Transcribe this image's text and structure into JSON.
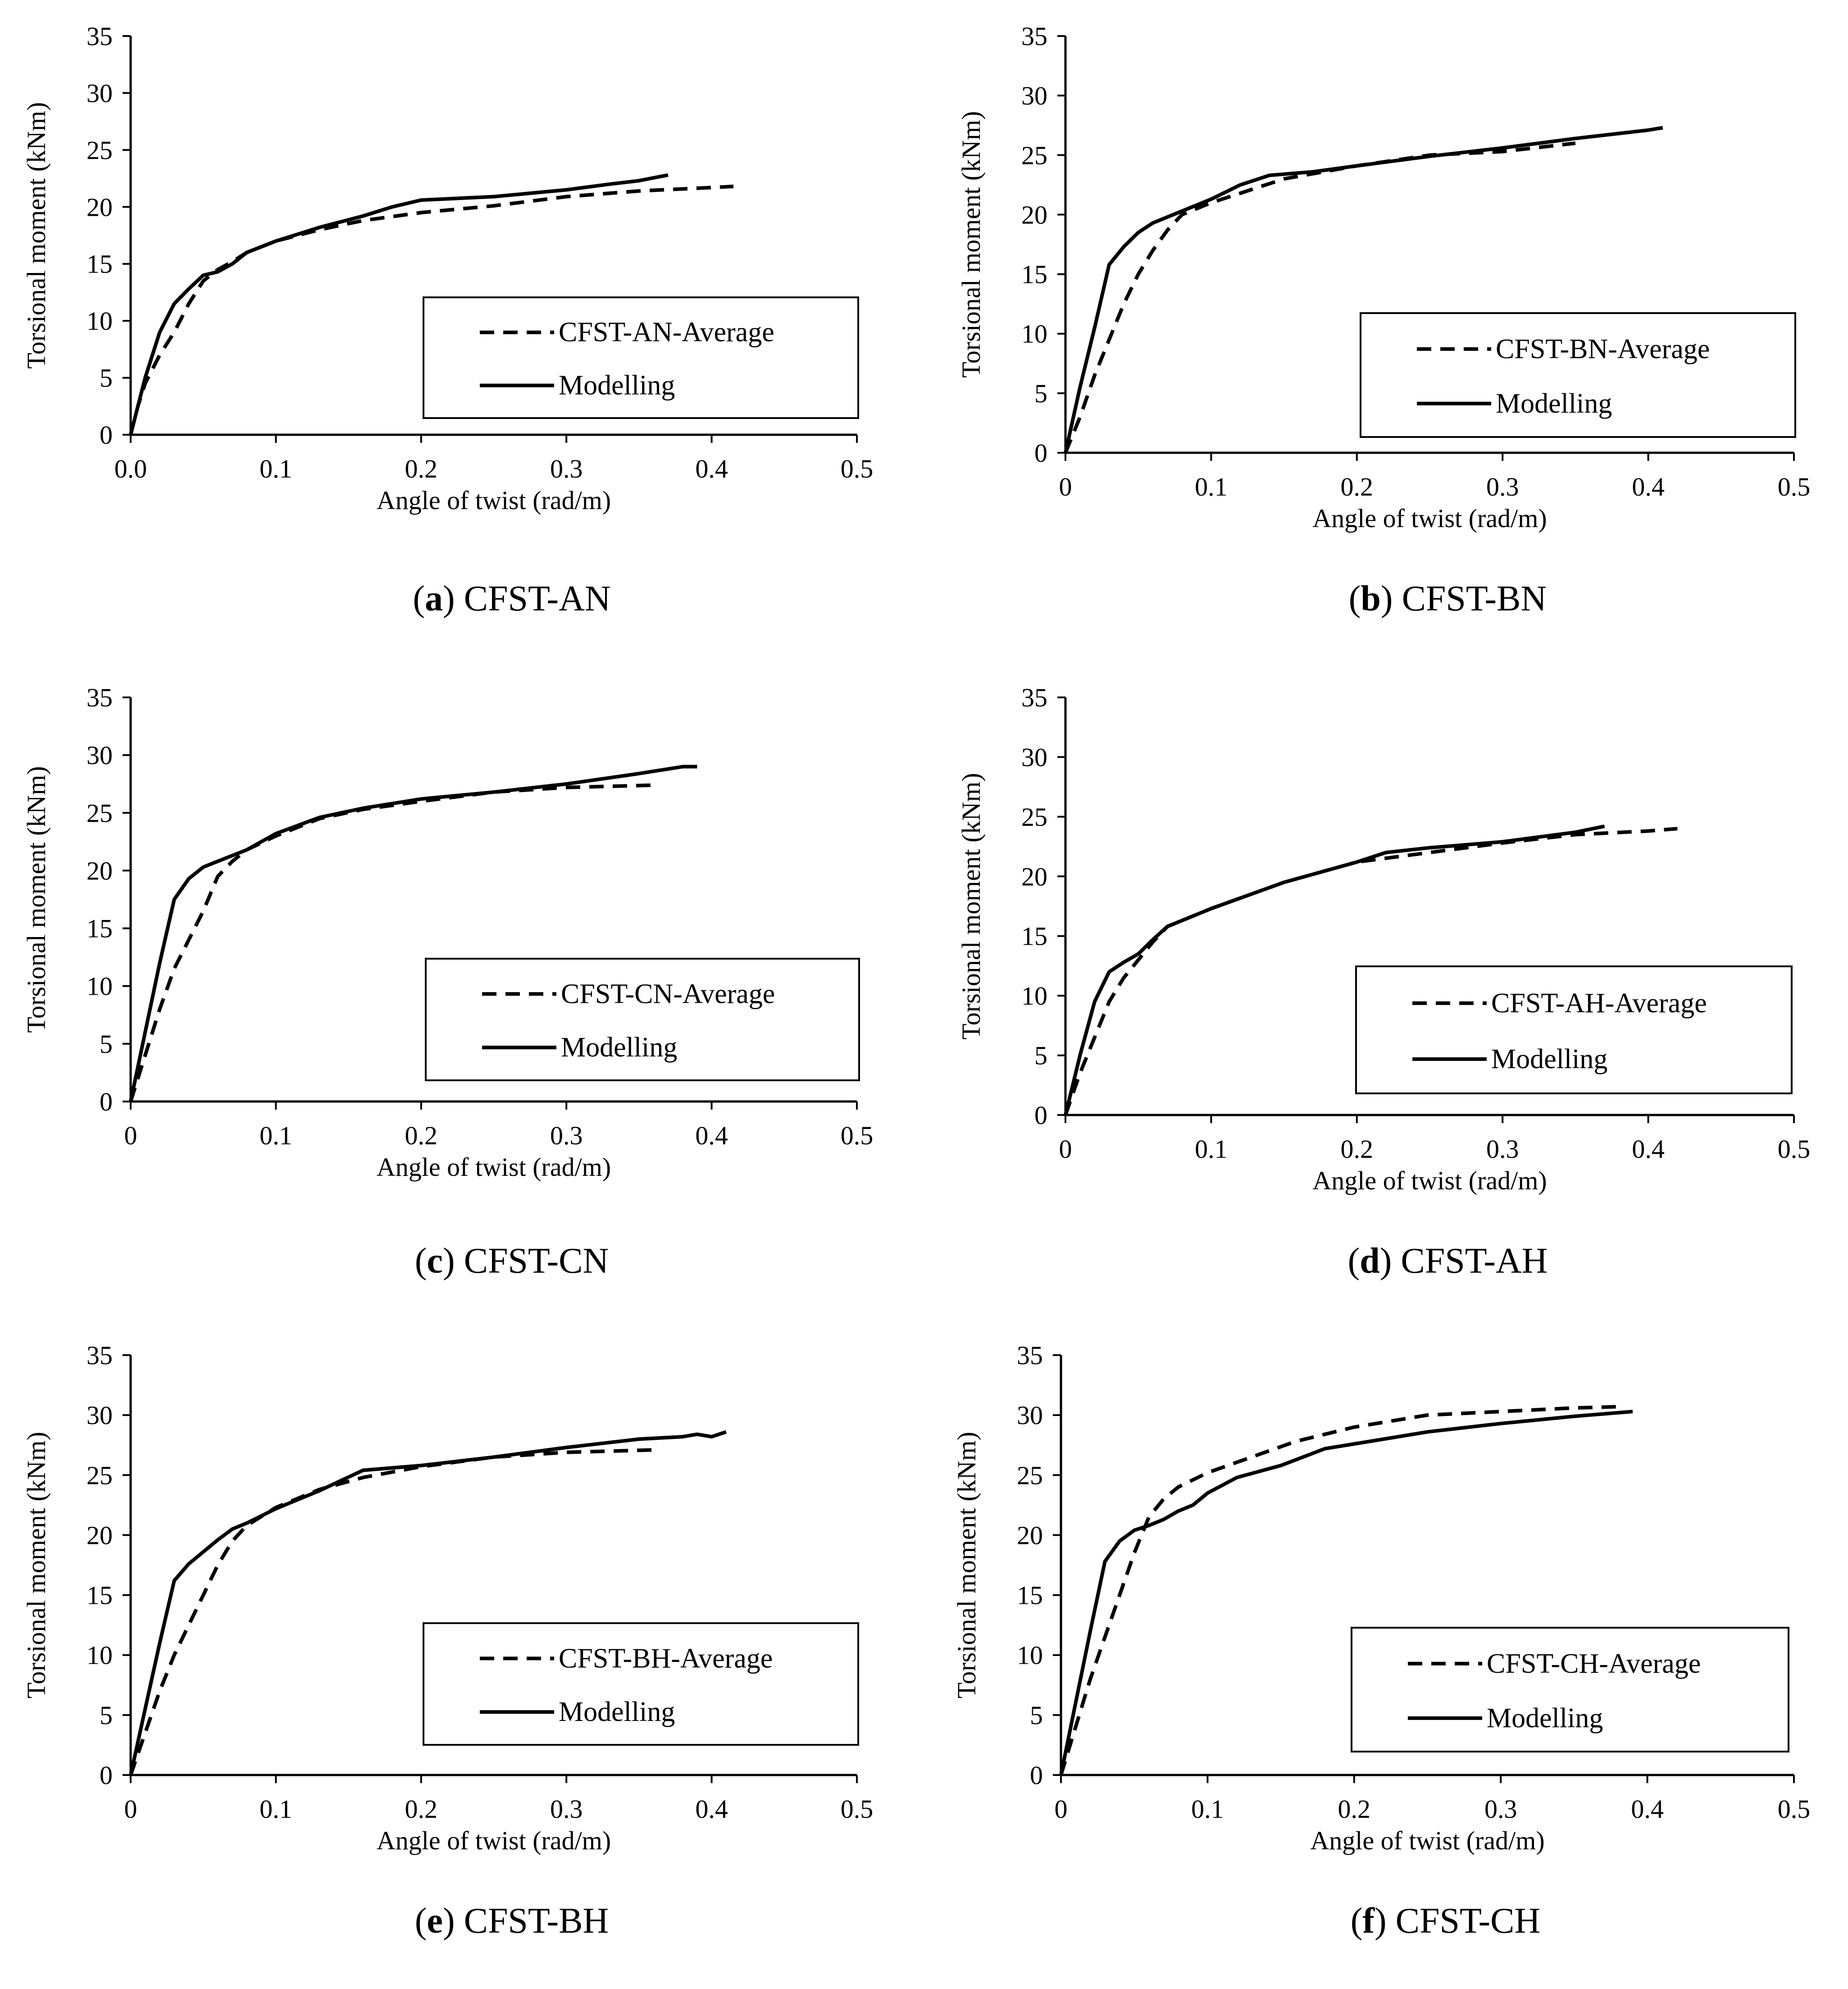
{
  "figure": {
    "panels": [
      {
        "caption_letter": "a",
        "caption_name": "CFST-AN",
        "chart_data": {
          "type": "line",
          "xlabel": "Angle  of twist  (rad/m)",
          "ylabel": "Torsional  moment  (kNm)",
          "xlim": [
            0,
            0.5
          ],
          "ylim": [
            0,
            35
          ],
          "xticks": [
            "0.0",
            "0.1",
            "0.2",
            "0.3",
            "0.4",
            "0.5"
          ],
          "yticks": [
            "0",
            "5",
            "10",
            "15",
            "20",
            "25",
            "30",
            "35"
          ],
          "legend": {
            "position": "lower-right",
            "entries": [
              "CFST-AN-Average",
              "Modelling"
            ]
          },
          "series": [
            {
              "name": "CFST-AN-Average",
              "style": "dashed",
              "x": [
                0,
                0.005,
                0.01,
                0.02,
                0.03,
                0.04,
                0.05,
                0.06,
                0.07,
                0.08,
                0.1,
                0.13,
                0.16,
                0.2,
                0.25,
                0.3,
                0.35,
                0.4,
                0.415
              ],
              "y": [
                0,
                2.5,
                4.5,
                7,
                9,
                11.5,
                13.5,
                14.5,
                15.2,
                16,
                17,
                18,
                18.8,
                19.5,
                20.1,
                20.9,
                21.4,
                21.7,
                21.8
              ]
            },
            {
              "name": "Modelling",
              "style": "solid",
              "x": [
                0,
                0.01,
                0.02,
                0.03,
                0.04,
                0.05,
                0.06,
                0.07,
                0.08,
                0.1,
                0.13,
                0.16,
                0.18,
                0.2,
                0.25,
                0.3,
                0.33,
                0.35,
                0.37
              ],
              "y": [
                0,
                5,
                9,
                11.5,
                12.8,
                14,
                14.3,
                15,
                16,
                17,
                18.2,
                19.2,
                20,
                20.6,
                20.9,
                21.5,
                22,
                22.3,
                22.8
              ]
            }
          ]
        }
      },
      {
        "caption_letter": "b",
        "caption_name": "CFST-BN",
        "chart_data": {
          "type": "line",
          "xlabel": "Angle  of twist  (rad/m)",
          "ylabel": "Torsional  moment  (kNm)",
          "xlim": [
            0,
            0.5
          ],
          "ylim": [
            0,
            35
          ],
          "xticks": [
            "0",
            "0.1",
            "0.2",
            "0.3",
            "0.4",
            "0.5"
          ],
          "yticks": [
            "0",
            "5",
            "10",
            "15",
            "20",
            "25",
            "30",
            "35"
          ],
          "legend": {
            "position": "lower-right",
            "entries": [
              "CFST-BN-Average",
              "Modelling"
            ]
          },
          "series": [
            {
              "name": "CFST-BN-Average",
              "style": "dashed",
              "x": [
                0,
                0.01,
                0.02,
                0.03,
                0.04,
                0.05,
                0.06,
                0.07,
                0.08,
                0.1,
                0.12,
                0.15,
                0.2,
                0.25,
                0.3,
                0.35
              ],
              "y": [
                0,
                3,
                6.5,
                9.5,
                12.5,
                15,
                17,
                18.7,
                20,
                21,
                21.8,
                23,
                24.1,
                25,
                25.3,
                26
              ]
            },
            {
              "name": "Modelling",
              "style": "solid",
              "x": [
                0,
                0.01,
                0.02,
                0.03,
                0.04,
                0.05,
                0.06,
                0.08,
                0.1,
                0.12,
                0.14,
                0.17,
                0.2,
                0.25,
                0.3,
                0.35,
                0.4,
                0.41
              ],
              "y": [
                0,
                5.5,
                10.5,
                15.8,
                17.3,
                18.5,
                19.3,
                20.3,
                21.3,
                22.5,
                23.3,
                23.6,
                24.1,
                24.9,
                25.6,
                26.4,
                27.1,
                27.3
              ]
            }
          ]
        }
      },
      {
        "caption_letter": "c",
        "caption_name": "CFST-CN",
        "chart_data": {
          "type": "line",
          "xlabel": "Angle  of twist  (rad/m)",
          "ylabel": "Torsional  moment  (kNm)",
          "xlim": [
            0,
            0.5
          ],
          "ylim": [
            0,
            35
          ],
          "xticks": [
            "0",
            "0.1",
            "0.2",
            "0.3",
            "0.4",
            "0.5"
          ],
          "yticks": [
            "0",
            "5",
            "10",
            "15",
            "20",
            "25",
            "30",
            "35"
          ],
          "legend": {
            "position": "lower-right",
            "entries": [
              "CFST-CN-Average",
              "Modelling"
            ]
          },
          "series": [
            {
              "name": "CFST-CN-Average",
              "style": "dashed",
              "x": [
                0,
                0.01,
                0.02,
                0.03,
                0.04,
                0.05,
                0.06,
                0.07,
                0.08,
                0.1,
                0.13,
                0.16,
                0.2,
                0.25,
                0.3,
                0.36
              ],
              "y": [
                0,
                4,
                8,
                11.5,
                14,
                16.5,
                19.5,
                20.8,
                21.8,
                23,
                24.5,
                25.3,
                26,
                26.8,
                27.2,
                27.4
              ]
            },
            {
              "name": "Modelling",
              "style": "solid",
              "x": [
                0,
                0.01,
                0.02,
                0.03,
                0.04,
                0.05,
                0.06,
                0.08,
                0.1,
                0.13,
                0.16,
                0.2,
                0.25,
                0.3,
                0.35,
                0.38,
                0.39
              ],
              "y": [
                0,
                6,
                12,
                17.5,
                19.3,
                20.3,
                20.8,
                21.8,
                23.2,
                24.6,
                25.4,
                26.2,
                26.8,
                27.5,
                28.4,
                29,
                29
              ]
            }
          ]
        }
      },
      {
        "caption_letter": "d",
        "caption_name": "CFST-AH",
        "chart_data": {
          "type": "line",
          "xlabel": "Angle  of twist  (rad/m)",
          "ylabel": "Torsional  moment  (kNm)",
          "xlim": [
            0,
            0.5
          ],
          "ylim": [
            0,
            35
          ],
          "xticks": [
            "0",
            "0.1",
            "0.2",
            "0.3",
            "0.4",
            "0.5"
          ],
          "yticks": [
            "0",
            "5",
            "10",
            "15",
            "20",
            "25",
            "30",
            "35"
          ],
          "legend": {
            "position": "lower-right",
            "entries": [
              "CFST-AH-Average",
              "Modelling"
            ]
          },
          "series": [
            {
              "name": "CFST-AH-Average",
              "style": "dashed",
              "x": [
                0,
                0.01,
                0.02,
                0.03,
                0.04,
                0.05,
                0.06,
                0.07,
                0.1,
                0.15,
                0.2,
                0.25,
                0.3,
                0.35,
                0.4,
                0.42
              ],
              "y": [
                0,
                3.5,
                6.5,
                9.5,
                11.5,
                13,
                14.5,
                15.8,
                17.3,
                19.5,
                21.2,
                22,
                22.8,
                23.5,
                23.8,
                24
              ]
            },
            {
              "name": "Modelling",
              "style": "solid",
              "x": [
                0,
                0.01,
                0.02,
                0.03,
                0.04,
                0.05,
                0.06,
                0.07,
                0.1,
                0.15,
                0.2,
                0.22,
                0.25,
                0.3,
                0.35,
                0.37
              ],
              "y": [
                0,
                5,
                9.5,
                12,
                12.8,
                13.5,
                14.7,
                15.8,
                17.3,
                19.5,
                21.2,
                22,
                22.4,
                22.9,
                23.7,
                24.2
              ]
            }
          ]
        }
      },
      {
        "caption_letter": "e",
        "caption_name": "CFST-BH",
        "chart_data": {
          "type": "line",
          "xlabel": "Angle  of twist  (rad/m)",
          "ylabel": "Torsional  moment  (kNm)",
          "xlim": [
            0,
            0.5
          ],
          "ylim": [
            0,
            35
          ],
          "xticks": [
            "0",
            "0.1",
            "0.2",
            "0.3",
            "0.4",
            "0.5"
          ],
          "yticks": [
            "0",
            "5",
            "10",
            "15",
            "20",
            "25",
            "30",
            "35"
          ],
          "legend": {
            "position": "lower-right",
            "entries": [
              "CFST-BH-Average",
              "Modelling"
            ]
          },
          "series": [
            {
              "name": "CFST-BH-Average",
              "style": "dashed",
              "x": [
                0,
                0.01,
                0.02,
                0.03,
                0.04,
                0.05,
                0.06,
                0.07,
                0.08,
                0.1,
                0.13,
                0.16,
                0.2,
                0.25,
                0.3,
                0.36
              ],
              "y": [
                0,
                3.5,
                7,
                10,
                12.5,
                15,
                17.5,
                19.5,
                20.8,
                22.3,
                23.8,
                24.8,
                25.7,
                26.5,
                26.9,
                27.1
              ]
            },
            {
              "name": "Modelling",
              "style": "solid",
              "x": [
                0,
                0.01,
                0.02,
                0.03,
                0.04,
                0.05,
                0.06,
                0.07,
                0.08,
                0.1,
                0.13,
                0.16,
                0.2,
                0.25,
                0.3,
                0.35,
                0.38,
                0.39,
                0.4,
                0.41
              ],
              "y": [
                0,
                5.5,
                11,
                16.2,
                17.6,
                18.6,
                19.6,
                20.5,
                21,
                22.2,
                23.7,
                25.4,
                25.8,
                26.5,
                27.3,
                28,
                28.2,
                28.4,
                28.2,
                28.6
              ]
            }
          ]
        }
      },
      {
        "caption_letter": "f",
        "caption_name": "CFST-CH",
        "chart_data": {
          "type": "line",
          "xlabel": "Angle  of twist  (rad/m)",
          "ylabel": "Torsional  moment  (kNm)",
          "xlim": [
            0,
            0.5
          ],
          "ylim": [
            0,
            35
          ],
          "xticks": [
            "0",
            "0.1",
            "0.2",
            "0.3",
            "0.4",
            "0.5"
          ],
          "yticks": [
            "0",
            "5",
            "10",
            "15",
            "20",
            "25",
            "30",
            "35"
          ],
          "legend": {
            "position": "lower-right",
            "entries": [
              "CFST-CH-Average",
              "Modelling"
            ]
          },
          "series": [
            {
              "name": "CFST-CH-Average",
              "style": "dashed",
              "x": [
                0,
                0.01,
                0.02,
                0.03,
                0.04,
                0.05,
                0.06,
                0.07,
                0.08,
                0.1,
                0.13,
                0.16,
                0.2,
                0.25,
                0.3,
                0.35,
                0.38
              ],
              "y": [
                0,
                4,
                8,
                11.5,
                15,
                18.5,
                21.5,
                23,
                24,
                25.2,
                26.5,
                27.8,
                29,
                30,
                30.3,
                30.6,
                30.7
              ]
            },
            {
              "name": "Modelling",
              "style": "solid",
              "x": [
                0,
                0.01,
                0.02,
                0.03,
                0.04,
                0.05,
                0.06,
                0.07,
                0.08,
                0.09,
                0.1,
                0.12,
                0.15,
                0.18,
                0.2,
                0.25,
                0.3,
                0.35,
                0.39
              ],
              "y": [
                0,
                6,
                12,
                17.8,
                19.5,
                20.4,
                20.8,
                21.3,
                22,
                22.5,
                23.5,
                24.8,
                25.8,
                27.2,
                27.6,
                28.6,
                29.3,
                29.9,
                30.3
              ]
            }
          ]
        }
      }
    ]
  }
}
